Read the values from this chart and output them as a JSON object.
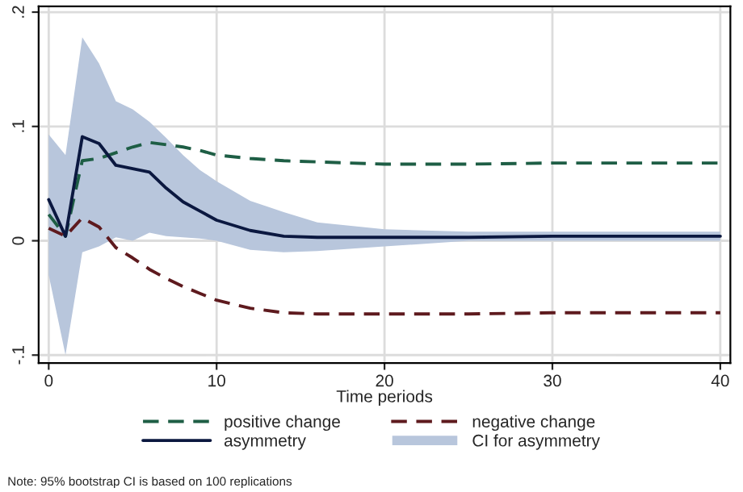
{
  "chart_data": {
    "type": "line",
    "xlabel": "Time periods",
    "x": [
      0,
      1,
      2,
      3,
      4,
      5,
      6,
      7,
      8,
      9,
      10,
      12,
      14,
      16,
      20,
      25,
      30,
      40
    ],
    "xlim": [
      -0.6,
      40.6
    ],
    "xticks": [
      0,
      10,
      20,
      30,
      40
    ],
    "ylim": [
      -0.107,
      0.205
    ],
    "yticks": [
      {
        "value": -0.1,
        "label": "-.1"
      },
      {
        "value": 0,
        "label": "0"
      },
      {
        "value": 0.1,
        "label": ".1"
      },
      {
        "value": 0.2,
        "label": ".2"
      }
    ],
    "grid": true,
    "legend": "bottom",
    "series": [
      {
        "name": "positive change",
        "color": "#1e5e45",
        "line_style": "dashed",
        "values": [
          0.023,
          0.004,
          0.07,
          0.072,
          0.077,
          0.082,
          0.086,
          0.084,
          0.082,
          0.079,
          0.075,
          0.072,
          0.07,
          0.069,
          0.067,
          0.067,
          0.068,
          0.068
        ]
      },
      {
        "name": "asymmetry",
        "color": "#0b1840",
        "line_style": "solid",
        "values": [
          0.036,
          0.004,
          0.091,
          0.085,
          0.066,
          0.063,
          0.06,
          0.046,
          0.034,
          0.026,
          0.018,
          0.009,
          0.004,
          0.003,
          0.003,
          0.003,
          0.004,
          0.004
        ],
        "lower": [
          -0.03,
          -0.1,
          -0.01,
          -0.005,
          0.003,
          0.0,
          0.007,
          0.004,
          0.003,
          0.002,
          0.0,
          -0.008,
          -0.01,
          -0.009,
          -0.005,
          0.0,
          0.0,
          0.0
        ],
        "upper": [
          0.093,
          0.075,
          0.178,
          0.155,
          0.122,
          0.115,
          0.104,
          0.09,
          0.075,
          0.062,
          0.052,
          0.035,
          0.025,
          0.016,
          0.01,
          0.008,
          0.008,
          0.008
        ]
      },
      {
        "name": "negative change",
        "color": "#5e1a1e",
        "line_style": "dashed",
        "values": [
          0.011,
          0.004,
          0.02,
          0.012,
          -0.006,
          -0.015,
          -0.025,
          -0.033,
          -0.04,
          -0.046,
          -0.052,
          -0.059,
          -0.063,
          -0.064,
          -0.064,
          -0.064,
          -0.063,
          -0.063
        ]
      }
    ],
    "annotations": [
      "CI for asymmetry",
      "Note: 95% bootstrap CI is based on 100 replications"
    ]
  }
}
